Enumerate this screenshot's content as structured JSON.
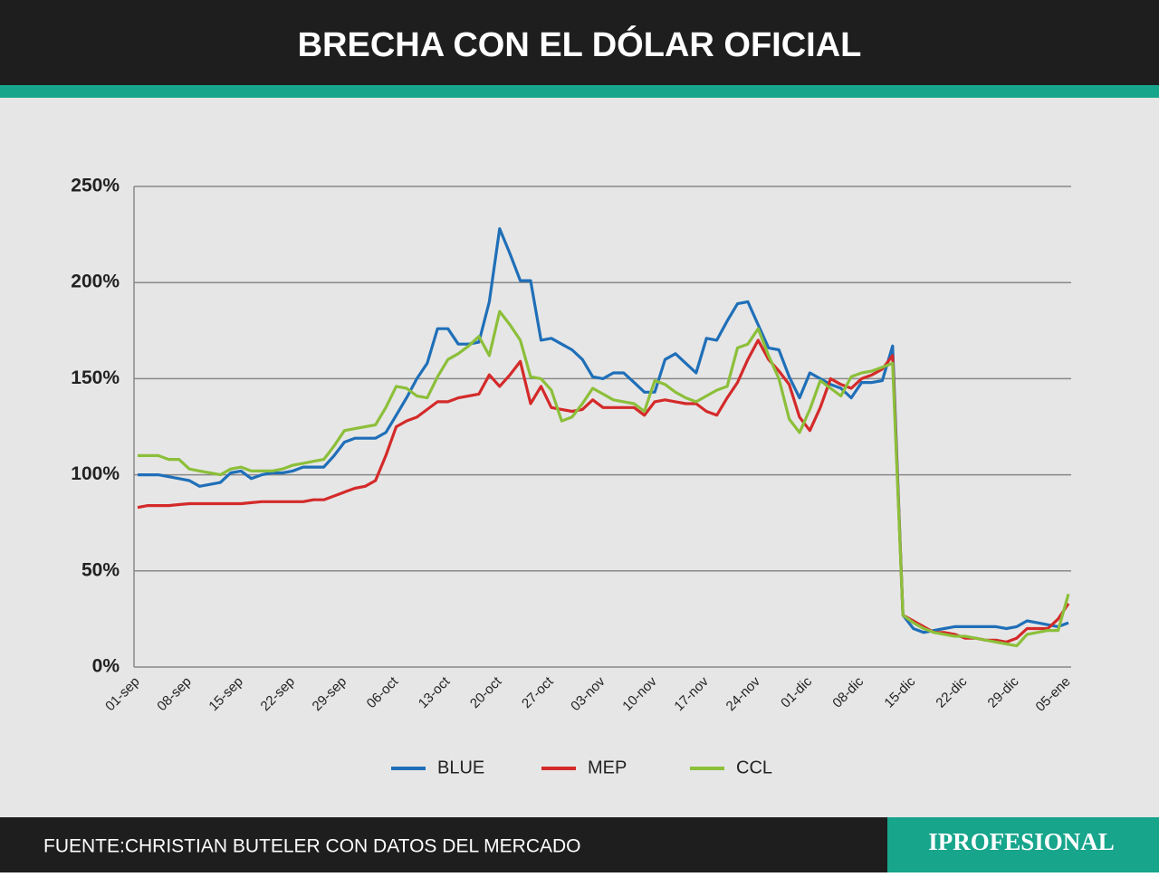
{
  "header": {
    "title": "BRECHA CON EL DÓLAR OFICIAL"
  },
  "footer": {
    "source": "FUENTE:CHRISTIAN BUTELER CON DATOS DEL MERCADO",
    "brand": "IPROFESIONAL"
  },
  "chart_data": {
    "type": "line",
    "categories": [
      "01-sep",
      null,
      null,
      null,
      null,
      "08-sep",
      null,
      null,
      null,
      null,
      "15-sep",
      null,
      null,
      null,
      null,
      "22-sep",
      null,
      null,
      null,
      null,
      "29-sep",
      null,
      null,
      null,
      null,
      "06-oct",
      null,
      null,
      null,
      null,
      "13-oct",
      null,
      null,
      null,
      null,
      "20-oct",
      null,
      null,
      null,
      null,
      "27-oct",
      null,
      null,
      null,
      null,
      "03-nov",
      null,
      null,
      null,
      null,
      "10-nov",
      null,
      null,
      null,
      null,
      "17-nov",
      null,
      null,
      null,
      null,
      "24-nov",
      null,
      null,
      null,
      null,
      "01-dic",
      null,
      null,
      null,
      null,
      "08-dic",
      null,
      null,
      null,
      null,
      "15-dic",
      null,
      null,
      null,
      null,
      "22-dic",
      null,
      null,
      null,
      null,
      "29-dic",
      null,
      null,
      null,
      null,
      "05-ene"
    ],
    "series": [
      {
        "name": "BLUE",
        "color": "#1f6fb8",
        "values": [
          100,
          100,
          100,
          99,
          98,
          97,
          94,
          95,
          96,
          101,
          102,
          98,
          100,
          101,
          101,
          102,
          104,
          104,
          104,
          110,
          117,
          119,
          119,
          119,
          122,
          131,
          140,
          150,
          158,
          176,
          176,
          168,
          168,
          169,
          190,
          228,
          215,
          201,
          201,
          170,
          171,
          168,
          165,
          160,
          151,
          150,
          153,
          153,
          148,
          143,
          143,
          160,
          163,
          158,
          153,
          171,
          170,
          180,
          189,
          190,
          178,
          166,
          165,
          151,
          140,
          153,
          150,
          147,
          145,
          140,
          148,
          148,
          149,
          167,
          27,
          20,
          18,
          19,
          20,
          21,
          21,
          21,
          21,
          21,
          20,
          21,
          24,
          23,
          22,
          21,
          23
        ]
      },
      {
        "name": "MEP",
        "color": "#d42a2a",
        "values": [
          83,
          84,
          84,
          84,
          84.5,
          85,
          85,
          85,
          85,
          85,
          85,
          85.5,
          86,
          86,
          86,
          86,
          86,
          87,
          87,
          89,
          91,
          93,
          94,
          97,
          110,
          125,
          128,
          130,
          134,
          138,
          138,
          140,
          141,
          142,
          152,
          146,
          152,
          159,
          137,
          146,
          135,
          134,
          133,
          134,
          139,
          135,
          135,
          135,
          135,
          131,
          138,
          139,
          138,
          137,
          137,
          133,
          131,
          140,
          148,
          160,
          170,
          160,
          154,
          147,
          130,
          123,
          135,
          150,
          147,
          145,
          150,
          152,
          155,
          162,
          27,
          24,
          21,
          18,
          18,
          17,
          15,
          15,
          14,
          14,
          13,
          15,
          20,
          20,
          20,
          25,
          33
        ]
      },
      {
        "name": "CCL",
        "color": "#8cbf3a",
        "values": [
          110,
          110,
          110,
          108,
          108,
          103,
          102,
          101,
          100,
          103,
          104,
          102,
          102,
          102,
          103,
          105,
          106,
          107,
          108,
          115,
          123,
          124,
          125,
          126,
          135,
          146,
          145,
          141,
          140,
          151,
          160,
          163,
          167,
          172,
          162,
          185,
          178,
          170,
          151,
          150,
          144,
          128,
          130,
          137,
          145,
          142,
          139,
          138,
          137,
          133,
          149,
          147,
          143,
          140,
          138,
          141,
          144,
          146,
          166,
          168,
          176,
          162,
          150,
          129,
          122,
          134,
          149,
          145,
          141,
          151,
          153,
          154,
          156,
          158,
          27,
          23,
          20,
          18,
          17,
          16,
          16,
          15,
          14,
          13,
          12,
          11,
          17,
          18,
          19,
          19,
          38
        ]
      }
    ],
    "ylim": [
      0,
      250
    ],
    "yticks": [
      {
        "value": 0,
        "label": "0%"
      },
      {
        "value": 50,
        "label": "50%"
      },
      {
        "value": 100,
        "label": "100%"
      },
      {
        "value": 150,
        "label": "150%"
      },
      {
        "value": 200,
        "label": "200%"
      },
      {
        "value": 250,
        "label": "250%"
      }
    ],
    "grid": true,
    "legend": "bottom"
  }
}
